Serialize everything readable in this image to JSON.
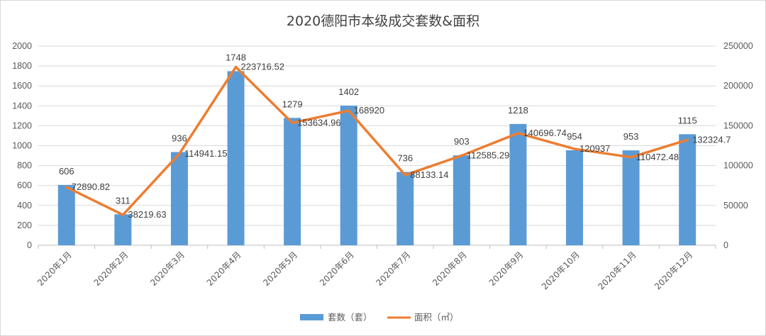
{
  "chart_data": {
    "type": "bar",
    "title": "2020德阳市本级成交套数&面积",
    "categories": [
      "2020年1月",
      "2020年2月",
      "2020年3月",
      "2020年4月",
      "2020年5月",
      "2020年6月",
      "2020年7月",
      "2020年8月",
      "2020年9月",
      "2020年10月",
      "2020年11月",
      "2020年12月"
    ],
    "series": [
      {
        "name": "套数（套）",
        "type": "bar",
        "axis": "left",
        "color": "#5b9bd5",
        "values": [
          606,
          311,
          936,
          1748,
          1279,
          1402,
          736,
          903,
          1218,
          954,
          953,
          1115
        ],
        "labels": [
          "606",
          "311",
          "936",
          "1748",
          "1279",
          "1402",
          "736",
          "903",
          "1218",
          "954",
          "953",
          "1115"
        ]
      },
      {
        "name": "面积（㎡）",
        "type": "line",
        "axis": "right",
        "color": "#ed7d31",
        "values": [
          72890.82,
          38219.63,
          114941.15,
          223716.52,
          153634.96,
          168920,
          88133.14,
          112585.29,
          140696.74,
          120937,
          110472.48,
          132324.7
        ],
        "labels": [
          "72890.82",
          "38219.63",
          "114941.15",
          "223716.52",
          "153634.96",
          "168920",
          "88133.14",
          "112585.29",
          "140696.74",
          "120937",
          "110472.48",
          "132324.7"
        ]
      }
    ],
    "y_left": {
      "min": 0,
      "max": 2000,
      "step": 200,
      "tick_labels": [
        "0",
        "200",
        "400",
        "600",
        "800",
        "1000",
        "1200",
        "1400",
        "1600",
        "1800",
        "2000"
      ]
    },
    "y_right": {
      "min": 0,
      "max": 250000,
      "step": 50000,
      "tick_labels": [
        "0",
        "50000",
        "100000",
        "150000",
        "200000",
        "250000"
      ]
    },
    "grid": true,
    "legend_position": "bottom"
  }
}
